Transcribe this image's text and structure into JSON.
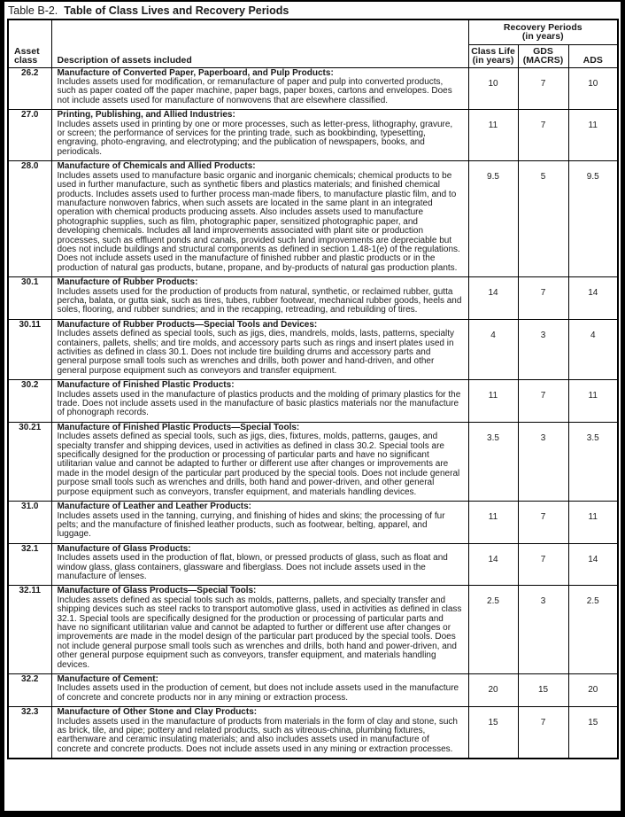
{
  "page": {
    "title_prefix": "Table B-2.",
    "title_main": "Table of Class Lives and Recovery Periods"
  },
  "table": {
    "headers": {
      "asset_class": "Asset\nclass",
      "description": "Description of assets included",
      "recovery_periods": "Recovery Periods\n(in years)",
      "class_life": "Class Life\n(in years)",
      "gds": "GDS\n(MACRS)",
      "ads": "ADS"
    },
    "rows": [
      {
        "asset_class": "26.2",
        "heading": "Manufacture of Converted Paper, Paperboard, and Pulp Products:",
        "description": "Includes assets used for modification, or remanufacture of paper and pulp into converted products, such as paper coated off the paper machine, paper bags, paper boxes, cartons and envelopes. Does not include assets used for manufacture of nonwovens that are elsewhere classified.",
        "class_life": "10",
        "gds": "7",
        "ads": "10"
      },
      {
        "asset_class": "27.0",
        "heading": "Printing, Publishing, and Allied Industries:",
        "description": "Includes assets used in printing by one or more processes, such as letter-press, lithography, gravure, or screen; the performance of services for the printing trade, such as bookbinding, typesetting, engraving, photo-engraving, and electrotyping; and the publication of newspapers, books, and periodicals.",
        "class_life": "11",
        "gds": "7",
        "ads": "11"
      },
      {
        "asset_class": "28.0",
        "heading": "Manufacture of Chemicals and Allied Products:",
        "description": "Includes assets used to manufacture basic organic and inorganic chemicals; chemical products to be used in further manufacture, such as synthetic fibers and plastics materials; and finished chemical products. Includes assets used to further process man-made fibers, to manufacture plastic film, and to manufacture nonwoven fabrics, when such assets are located in the same plant in an integrated operation with chemical products producing assets. Also includes assets used to manufacture photographic supplies, such as film, photographic paper, sensitized photographic paper, and developing chemicals. Includes all land improvements associated with plant site or production processes, such as effluent ponds and canals, provided such land improvements are depreciable but does not include buildings and structural components as defined in section 1.48-1(e) of the regulations. Does not include assets used in the manufacture of finished rubber and plastic products or in the production of natural gas products, butane, propane, and by-products of natural gas production plants.",
        "class_life": "9.5",
        "gds": "5",
        "ads": "9.5"
      },
      {
        "asset_class": "30.1",
        "heading": "Manufacture of Rubber Products:",
        "description": "Includes assets used for the production of products from natural, synthetic, or reclaimed rubber, gutta percha, balata, or gutta siak, such as tires, tubes, rubber footwear, mechanical rubber goods, heels and soles, flooring, and rubber sundries; and in the recapping, retreading, and rebuilding of tires.",
        "class_life": "14",
        "gds": "7",
        "ads": "14"
      },
      {
        "asset_class": "30.11",
        "heading": "Manufacture of Rubber Products—Special Tools and Devices:",
        "description": "Includes assets defined as special tools, such as jigs, dies, mandrels, molds, lasts, patterns, specialty containers, pallets, shells; and tire molds, and accessory parts such as rings and insert plates used in activities as defined in class 30.1. Does not include tire building drums and accessory parts and general purpose small tools such as wrenches and drills, both power and hand-driven, and other general purpose equipment such as conveyors and transfer equipment.",
        "class_life": "4",
        "gds": "3",
        "ads": "4"
      },
      {
        "asset_class": "30.2",
        "heading": "Manufacture of Finished Plastic Products:",
        "description": "Includes assets used in the manufacture of plastics products and the molding of primary plastics for the trade. Does not include assets used in the manufacture of basic plastics materials nor the manufacture of phonograph records.",
        "class_life": "11",
        "gds": "7",
        "ads": "11"
      },
      {
        "asset_class": "30.21",
        "heading": "Manufacture of Finished Plastic Products—Special Tools:",
        "description": "Includes assets defined as special tools, such as jigs, dies, fixtures, molds, patterns, gauges, and specialty transfer and shipping devices, used in activities as defined in class 30.2. Special tools are specifically designed for the production or processing of particular parts and have no significant utilitarian value and cannot be adapted to further or different use after changes or improvements are made in the model design of the particular part produced by the special tools. Does not include general purpose small tools such as wrenches and drills, both hand and power-driven, and other general purpose equipment such as conveyors, transfer equipment, and materials handling devices.",
        "class_life": "3.5",
        "gds": "3",
        "ads": "3.5"
      },
      {
        "asset_class": "31.0",
        "heading": "Manufacture of Leather and Leather Products:",
        "description": "Includes assets used in the tanning, currying, and finishing of hides and skins; the processing of fur pelts; and the manufacture of finished leather products, such as footwear, belting, apparel, and luggage.",
        "class_life": "11",
        "gds": "7",
        "ads": "11"
      },
      {
        "asset_class": "32.1",
        "heading": "Manufacture of Glass Products:",
        "description": "Includes assets used in the production of flat, blown, or pressed products of glass, such as float and window glass, glass containers, glassware and fiberglass. Does not include assets used in the manufacture of lenses.",
        "class_life": "14",
        "gds": "7",
        "ads": "14"
      },
      {
        "asset_class": "32.11",
        "heading": "Manufacture of Glass Products—Special Tools:",
        "description": "Includes assets defined as special tools such as molds, patterns, pallets, and specialty transfer and shipping devices such as steel racks to transport automotive glass, used in activities as defined in class 32.1. Special tools are specifically designed for the production or processing of particular parts and have no significant utilitarian value and cannot be adapted to further or different use after changes or improvements are made in the model design of the particular part produced by the special tools. Does not include general purpose small tools such as wrenches and drills, both hand and power-driven, and other general purpose equipment such as conveyors, transfer equipment, and materials handling devices.",
        "class_life": "2.5",
        "gds": "3",
        "ads": "2.5"
      },
      {
        "asset_class": "32.2",
        "heading": "Manufacture of Cement:",
        "description": "Includes assets used in the production of cement, but does not include assets used in the manufacture of concrete and concrete products nor in any mining or extraction process.",
        "class_life": "20",
        "gds": "15",
        "ads": "20"
      },
      {
        "asset_class": "32.3",
        "heading": "Manufacture of Other Stone and Clay Products:",
        "description": "Includes assets used in the manufacture of products from materials in the form of clay and stone, such as brick, tile, and pipe; pottery and related products, such as vitreous-china, plumbing fixtures, earthenware and ceramic insulating materials; and also includes assets used in manufacture of concrete and concrete products. Does not include assets used in any mining or extraction processes.",
        "class_life": "15",
        "gds": "7",
        "ads": "15"
      }
    ]
  }
}
